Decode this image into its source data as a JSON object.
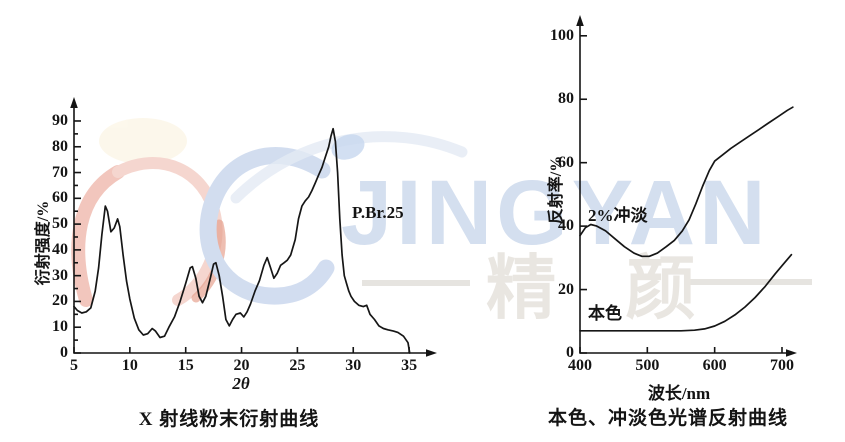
{
  "watermark": {
    "brand_text": "JINGYAN",
    "brand_cjk": "精 颜",
    "brand_color": "#d4dfef",
    "cjk_color": "#e9e6e1",
    "dash_color": "#e6e4e0",
    "swoosh_red": "#efb9ad",
    "swoosh_red_light": "#f3cdc4",
    "swoosh_red_deep": "#e08a74",
    "swoosh_blue": "#c7d5ec",
    "swoosh_blue_light": "#dde6f3",
    "dot_blue": "#bdd0ec",
    "blob_cream": "#fcf6e7"
  },
  "chart_data": [
    {
      "type": "line",
      "title": "X 射线粉末衍射曲线",
      "xlabel": "2θ",
      "ylabel": "衍射强度/%",
      "xlim": [
        5,
        36.5
      ],
      "ylim": [
        0,
        95
      ],
      "grid": false,
      "x_ticks": [
        5,
        10,
        15,
        20,
        25,
        30,
        35
      ],
      "y_ticks": [
        0,
        10,
        20,
        30,
        40,
        50,
        60,
        70,
        80,
        90
      ],
      "legend_position": "annotation-on-curve",
      "series": [
        {
          "name": "P.Br.25",
          "points": [
            [
              5.0,
              18
            ],
            [
              5.3,
              16.5
            ],
            [
              5.7,
              15.5
            ],
            [
              6.1,
              16
            ],
            [
              6.5,
              17.5
            ],
            [
              6.9,
              24
            ],
            [
              7.2,
              33
            ],
            [
              7.5,
              46
            ],
            [
              7.8,
              57
            ],
            [
              8.0,
              55
            ],
            [
              8.3,
              47
            ],
            [
              8.6,
              48.5
            ],
            [
              8.9,
              52
            ],
            [
              9.1,
              49
            ],
            [
              9.4,
              38
            ],
            [
              9.7,
              28
            ],
            [
              10.0,
              21
            ],
            [
              10.4,
              13.5
            ],
            [
              10.8,
              9
            ],
            [
              11.2,
              7
            ],
            [
              11.6,
              7.5
            ],
            [
              12.0,
              9.5
            ],
            [
              12.3,
              8.5
            ],
            [
              12.7,
              6
            ],
            [
              13.1,
              6.5
            ],
            [
              13.5,
              10
            ],
            [
              14.0,
              14
            ],
            [
              14.5,
              20
            ],
            [
              15.0,
              27
            ],
            [
              15.4,
              33
            ],
            [
              15.6,
              33.5
            ],
            [
              15.9,
              29
            ],
            [
              16.2,
              22
            ],
            [
              16.5,
              19.5
            ],
            [
              16.8,
              22
            ],
            [
              17.2,
              29
            ],
            [
              17.5,
              34.5
            ],
            [
              17.7,
              35
            ],
            [
              18.0,
              30
            ],
            [
              18.3,
              22
            ],
            [
              18.6,
              13
            ],
            [
              18.9,
              10.5
            ],
            [
              19.2,
              13
            ],
            [
              19.5,
              15
            ],
            [
              19.9,
              15.5
            ],
            [
              20.2,
              14
            ],
            [
              20.5,
              16
            ],
            [
              20.8,
              19
            ],
            [
              21.2,
              24
            ],
            [
              21.6,
              28
            ],
            [
              22.0,
              34
            ],
            [
              22.3,
              37
            ],
            [
              22.6,
              33
            ],
            [
              22.9,
              29
            ],
            [
              23.2,
              31
            ],
            [
              23.5,
              34
            ],
            [
              23.8,
              35
            ],
            [
              24.1,
              36
            ],
            [
              24.4,
              38
            ],
            [
              24.8,
              44
            ],
            [
              25.1,
              52
            ],
            [
              25.4,
              57
            ],
            [
              25.7,
              59
            ],
            [
              26.0,
              60.5
            ],
            [
              26.3,
              63
            ],
            [
              26.6,
              66
            ],
            [
              26.9,
              69
            ],
            [
              27.2,
              72
            ],
            [
              27.5,
              76
            ],
            [
              27.8,
              80
            ],
            [
              28.0,
              84
            ],
            [
              28.2,
              87
            ],
            [
              28.4,
              82
            ],
            [
              28.6,
              70
            ],
            [
              28.8,
              52
            ],
            [
              29.0,
              38
            ],
            [
              29.2,
              30
            ],
            [
              29.4,
              27
            ],
            [
              29.6,
              24
            ],
            [
              29.8,
              22
            ],
            [
              30.1,
              20
            ],
            [
              30.5,
              18.5
            ],
            [
              30.9,
              18
            ],
            [
              31.2,
              18.5
            ],
            [
              31.5,
              15
            ],
            [
              31.9,
              13
            ],
            [
              32.3,
              10.5
            ],
            [
              32.7,
              9.5
            ],
            [
              33.1,
              9
            ],
            [
              33.6,
              8.5
            ],
            [
              34.0,
              8
            ],
            [
              34.5,
              6.5
            ],
            [
              34.9,
              4
            ],
            [
              35.05,
              0
            ]
          ]
        }
      ]
    },
    {
      "type": "line",
      "title": "本色、冲淡色光谱反射曲线",
      "xlabel": "波长/nm",
      "ylabel": "反射率/%",
      "xlim": [
        400,
        722
      ],
      "ylim": [
        0,
        107
      ],
      "grid": false,
      "x_ticks": [
        400,
        500,
        600,
        700
      ],
      "y_ticks": [
        0,
        20,
        40,
        60,
        80,
        100
      ],
      "legend_position": "annotation-on-curve",
      "series": [
        {
          "name": "2%冲淡",
          "points": [
            [
              400,
              37
            ],
            [
              408,
              39.5
            ],
            [
              416,
              40.5
            ],
            [
              425,
              40
            ],
            [
              438,
              38.5
            ],
            [
              452,
              36
            ],
            [
              466,
              33.5
            ],
            [
              480,
              31.5
            ],
            [
              492,
              30.5
            ],
            [
              503,
              30.5
            ],
            [
              515,
              31.5
            ],
            [
              528,
              33.5
            ],
            [
              540,
              35.5
            ],
            [
              552,
              38.5
            ],
            [
              562,
              42
            ],
            [
              572,
              47
            ],
            [
              582,
              52.5
            ],
            [
              592,
              57.5
            ],
            [
              600,
              60.5
            ],
            [
              612,
              62.5
            ],
            [
              624,
              64.5
            ],
            [
              638,
              66.5
            ],
            [
              652,
              68.5
            ],
            [
              666,
              70.5
            ],
            [
              680,
              72.5
            ],
            [
              694,
              74.5
            ],
            [
              708,
              76.5
            ],
            [
              716,
              77.5
            ]
          ]
        },
        {
          "name": "本色",
          "points": [
            [
              400,
              7
            ],
            [
              440,
              7
            ],
            [
              480,
              7
            ],
            [
              520,
              7
            ],
            [
              550,
              7
            ],
            [
              570,
              7.2
            ],
            [
              585,
              7.6
            ],
            [
              600,
              8.5
            ],
            [
              615,
              10
            ],
            [
              630,
              12
            ],
            [
              645,
              14.5
            ],
            [
              660,
              17.5
            ],
            [
              675,
              21
            ],
            [
              690,
              25
            ],
            [
              702,
              28
            ],
            [
              714,
              31
            ]
          ]
        }
      ]
    }
  ]
}
